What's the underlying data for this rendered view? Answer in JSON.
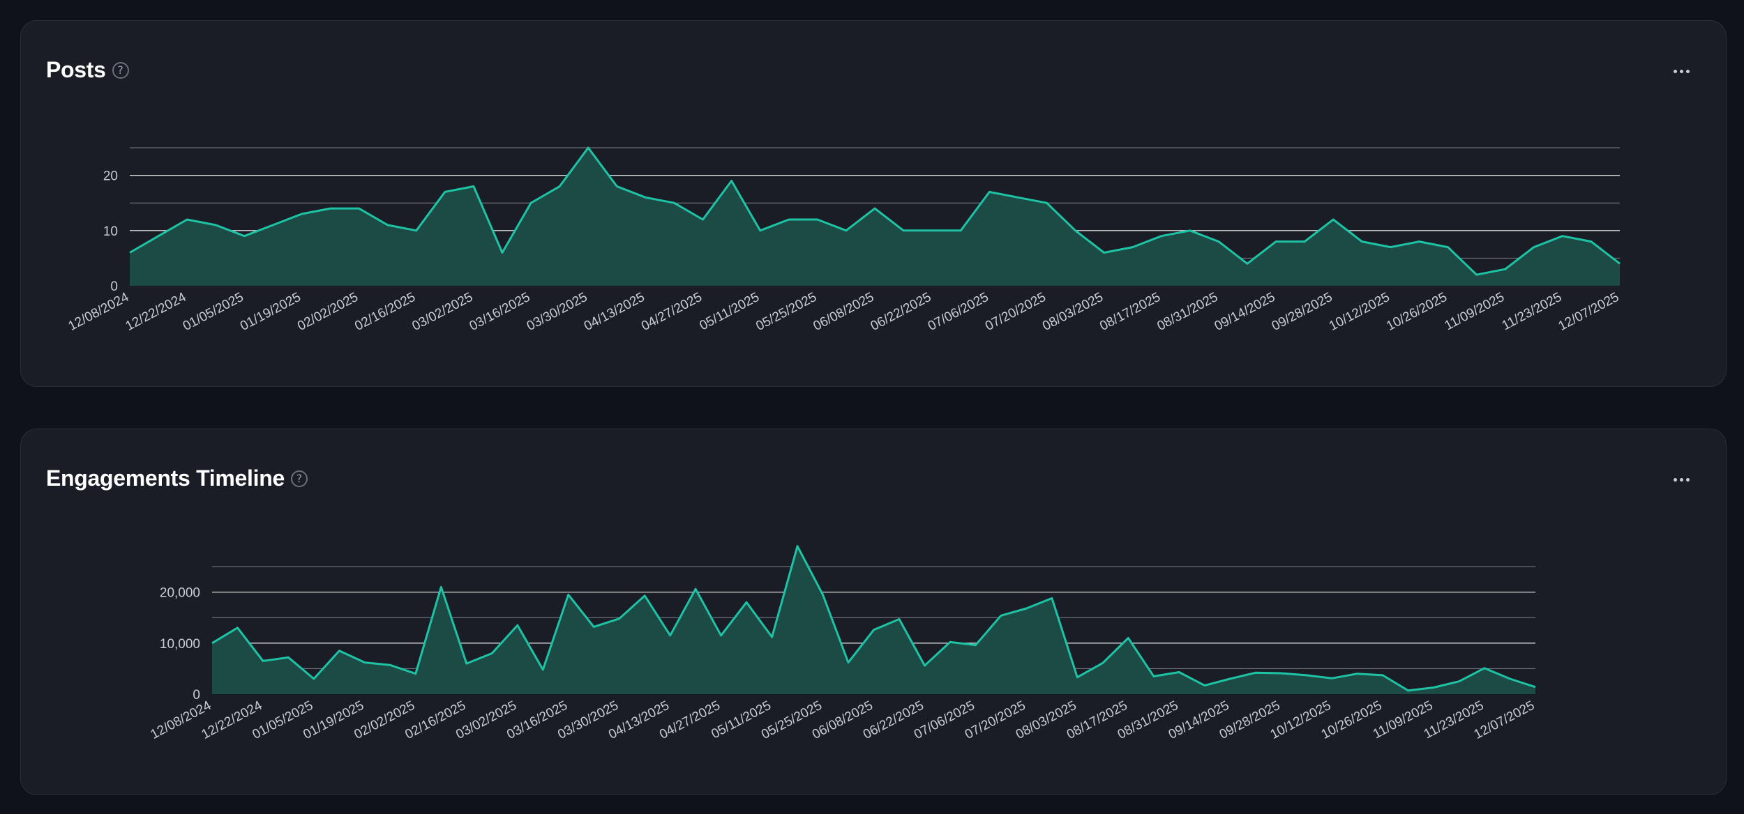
{
  "colors": {
    "background": "#0f121a",
    "card": "#1a1c26",
    "line": "#1ec3a5",
    "area": "#1c4b46",
    "grid_major": "#ffffff",
    "grid_minor": "#7f828c"
  },
  "icons": {
    "help": "question-circle-icon",
    "more": "ellipsis-icon"
  },
  "cards": [
    {
      "title": "Posts",
      "help_symbol": "?",
      "more_label": "More options"
    },
    {
      "title": "Engagements Timeline",
      "help_symbol": "?",
      "more_label": "More options"
    }
  ],
  "chart_data": [
    {
      "type": "area",
      "title": "Posts",
      "xlabel": "",
      "ylabel": "",
      "grid": true,
      "legend": "none",
      "ylim": [
        0,
        25
      ],
      "yticks": [
        0,
        10,
        20
      ],
      "yticks_minor": [
        5,
        15,
        25
      ],
      "x_tick_labels": [
        "12/08/2024",
        "12/22/2024",
        "01/05/2025",
        "01/19/2025",
        "02/02/2025",
        "02/16/2025",
        "03/02/2025",
        "03/16/2025",
        "03/30/2025",
        "04/13/2025",
        "04/27/2025",
        "05/11/2025",
        "05/25/2025",
        "06/08/2025",
        "06/22/2025",
        "07/06/2025",
        "07/20/2025",
        "08/03/2025",
        "08/17/2025",
        "08/31/2025",
        "09/14/2025",
        "09/28/2025",
        "10/12/2025",
        "10/26/2025",
        "11/09/2025",
        "11/23/2025",
        "12/07/2025"
      ],
      "x_period": "weekly",
      "x_start": "12/08/2024",
      "series": [
        {
          "values": [
            6,
            9,
            12,
            11,
            9,
            11,
            13,
            14,
            14,
            11,
            10,
            17,
            18,
            6,
            15,
            18,
            25,
            18,
            16,
            15,
            12,
            19,
            10,
            12,
            12,
            10,
            14,
            10,
            10,
            10,
            17,
            16,
            15,
            10,
            6,
            7,
            9,
            10,
            8,
            4,
            8,
            8,
            12,
            8,
            7,
            8,
            7,
            2,
            3,
            7,
            9,
            8,
            4
          ]
        }
      ]
    },
    {
      "type": "area",
      "title": "Engagements Timeline",
      "xlabel": "",
      "ylabel": "",
      "grid": true,
      "legend": "none",
      "ylim": [
        0,
        25000
      ],
      "yticks": [
        0,
        10000,
        20000
      ],
      "ytick_labels": [
        "0",
        "10,000",
        "20,000"
      ],
      "yticks_minor": [
        5000,
        15000,
        25000
      ],
      "x_tick_labels": [
        "12/08/2024",
        "12/22/2024",
        "01/05/2025",
        "01/19/2025",
        "02/02/2025",
        "02/16/2025",
        "03/02/2025",
        "03/16/2025",
        "03/30/2025",
        "04/13/2025",
        "04/27/2025",
        "05/11/2025",
        "05/25/2025",
        "06/08/2025",
        "06/22/2025",
        "07/06/2025",
        "07/20/2025",
        "08/03/2025",
        "08/17/2025",
        "08/31/2025",
        "09/14/2025",
        "09/28/2025",
        "10/12/2025",
        "10/26/2025",
        "11/09/2025",
        "11/23/2025",
        "12/07/2025"
      ],
      "x_period": "weekly",
      "x_start": "12/08/2024",
      "series": [
        {
          "values": [
            10000,
            13000,
            6500,
            7200,
            3000,
            8500,
            6200,
            5700,
            4000,
            21000,
            6000,
            8000,
            13500,
            4800,
            19500,
            13200,
            14800,
            19300,
            11500,
            20600,
            11500,
            18000,
            11200,
            29000,
            19500,
            6200,
            12600,
            14700,
            5600,
            10200,
            9600,
            15400,
            16800,
            18800,
            3300,
            6100,
            11000,
            3500,
            4300,
            1700,
            3000,
            4200,
            4100,
            3700,
            3100,
            4000,
            3700,
            700,
            1300,
            2500,
            5100,
            3000,
            1400
          ]
        }
      ]
    }
  ]
}
